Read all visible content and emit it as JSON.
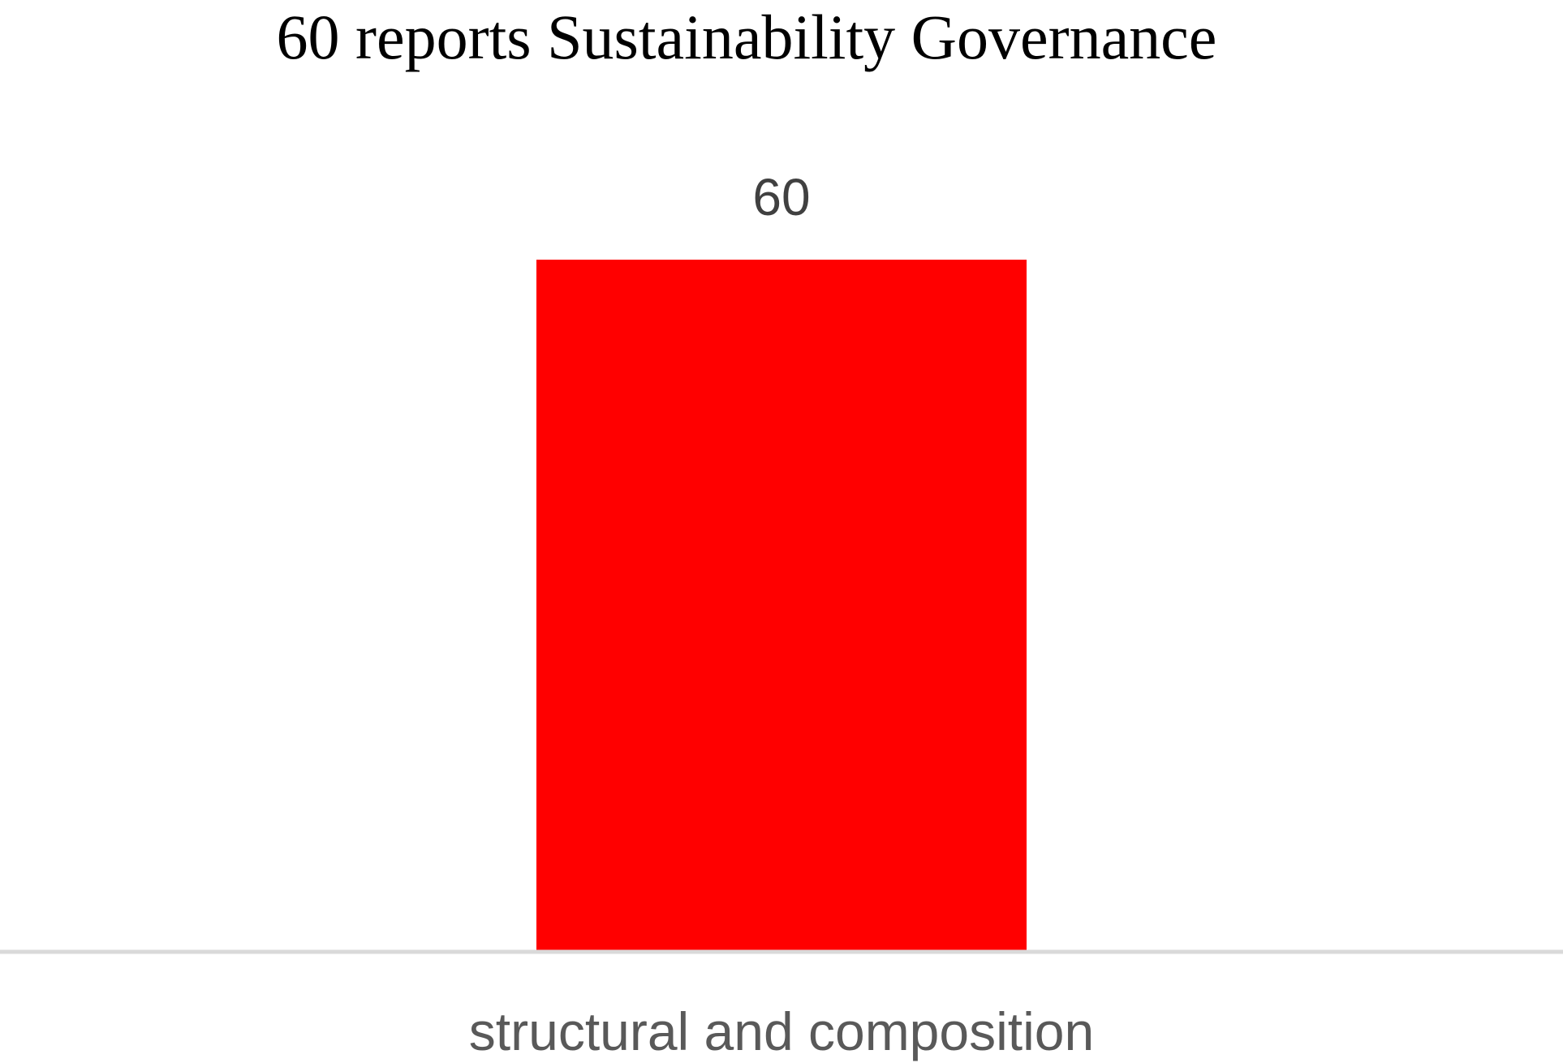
{
  "chart_data": {
    "type": "bar",
    "title": "60 reports Sustainability Governance",
    "categories": [
      "structural and composition"
    ],
    "values": [
      60
    ],
    "data_labels": [
      "60"
    ],
    "xlabel": "",
    "ylabel": "",
    "ylim": [
      0,
      60
    ],
    "grid": false,
    "legend": "none",
    "colors": {
      "bar": "#ff0000",
      "axis": "#d9d9d9",
      "title": "#000000",
      "data_label": "#404040",
      "tick_label": "#595959"
    }
  }
}
